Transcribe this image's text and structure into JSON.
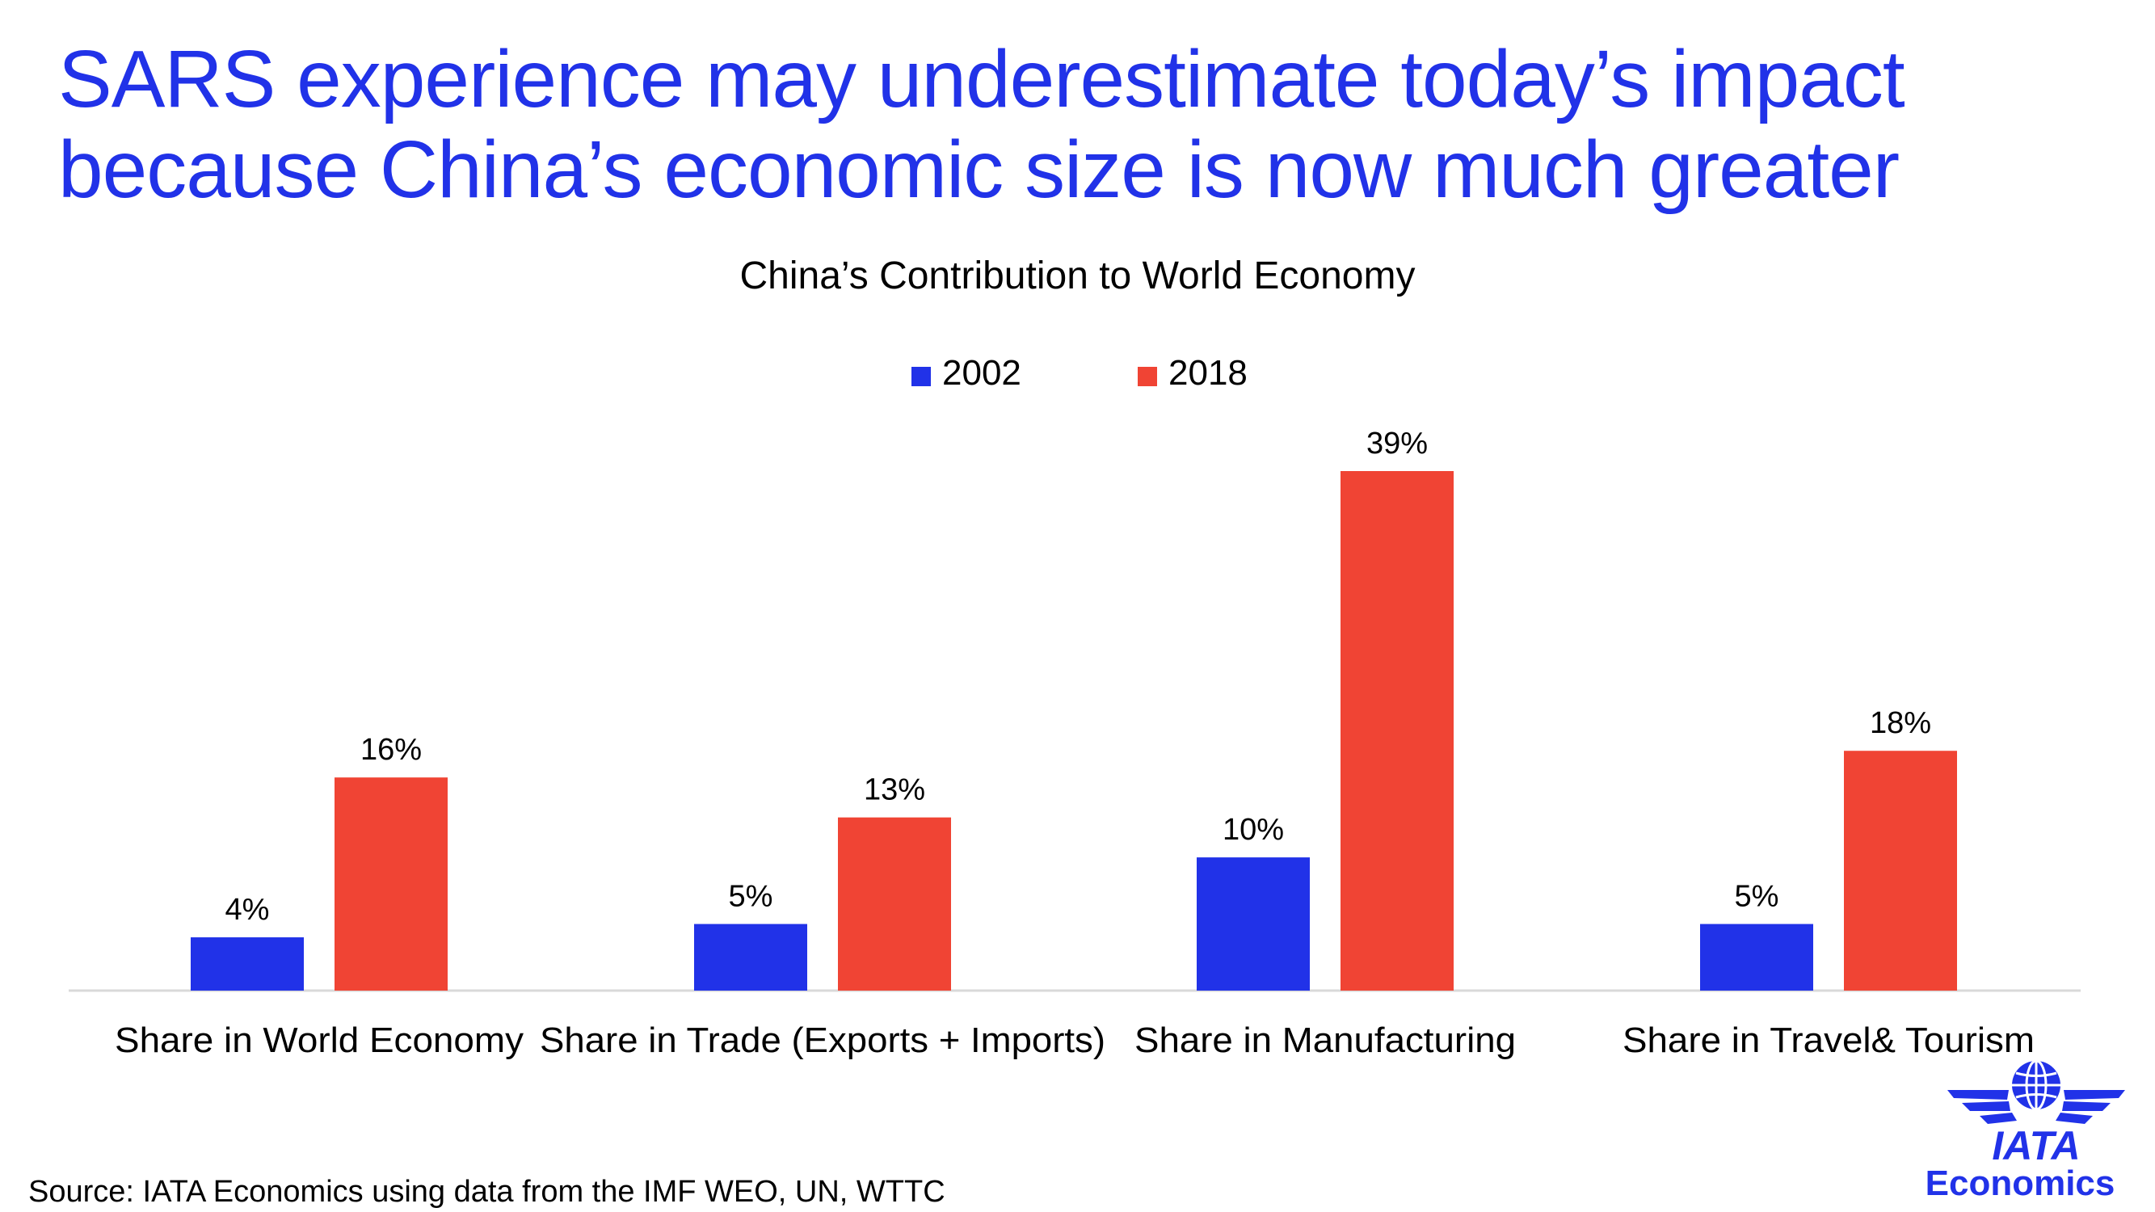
{
  "headline": {
    "line1": "SARS experience may underestimate today’s impact",
    "line2": "because China’s economic size is now much greater"
  },
  "chart_data": {
    "type": "bar",
    "title": "China’s Contribution to World Economy",
    "categories": [
      "Share in World Economy",
      "Share in Trade (Exports + Imports)",
      "Share in Manufacturing",
      "Share in Travel& Tourism"
    ],
    "series": [
      {
        "name": "2002",
        "color": "#2132e8",
        "values": [
          4,
          5,
          10,
          5
        ],
        "labels": [
          "4%",
          "5%",
          "10%",
          "5%"
        ]
      },
      {
        "name": "2018",
        "color": "#f04434",
        "values": [
          16,
          13,
          39,
          18
        ],
        "labels": [
          "16%",
          "13%",
          "39%",
          "18%"
        ]
      }
    ],
    "xlabel": "",
    "ylabel": "",
    "ylim": [
      0,
      40
    ],
    "grid": false,
    "legend": "top-center",
    "data_labels": true
  },
  "source": "Source: IATA Economics using data from the IMF WEO, UN, WTTC",
  "logo": {
    "name": "IATA",
    "subtitle": "Economics"
  },
  "colors": {
    "brand": "#2132e8",
    "accent": "#f04434",
    "axis": "#d9d9d9"
  }
}
